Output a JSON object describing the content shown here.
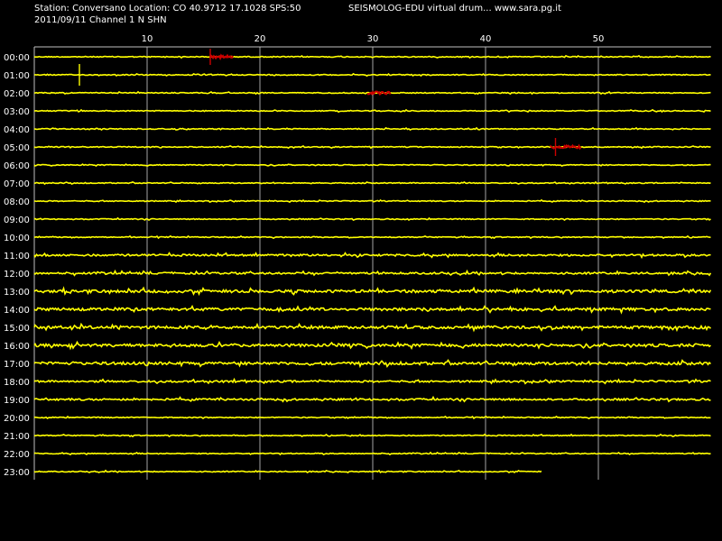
{
  "header": {
    "station_line": "Station: Conversano Location: CO 40.9712 17.1028 SPS:50",
    "title": "SEISMOLOG-EDU virtual drum... www.sara.pg.it",
    "date_line": "2011/09/11  Channel 1 N SHN"
  },
  "colors": {
    "background": "#000000",
    "trace": "#ffff00",
    "event": "#cc0000",
    "grid": "#c0c0c0",
    "text": "#ffffff"
  },
  "chart_data": {
    "type": "line",
    "title": "",
    "xlabel": "",
    "ylabel": "",
    "xlim": [
      0,
      60
    ],
    "x_ticks": [
      10,
      20,
      30,
      40,
      50
    ],
    "grid": true,
    "rows": [
      "00:00",
      "01:00",
      "02:00",
      "03:00",
      "04:00",
      "05:00",
      "06:00",
      "07:00",
      "08:00",
      "09:00",
      "10:00",
      "11:00",
      "12:00",
      "13:00",
      "14:00",
      "15:00",
      "16:00",
      "17:00",
      "18:00",
      "19:00",
      "20:00",
      "21:00",
      "22:00",
      "23:00"
    ],
    "noise_level": [
      1,
      1,
      1,
      1,
      1,
      1,
      1,
      1,
      1,
      1,
      1,
      2,
      2,
      3,
      3,
      3,
      3,
      3,
      2,
      2,
      1,
      1,
      1,
      1
    ],
    "last_row_end_minute": 45,
    "events": [
      {
        "row": 0,
        "start": 15.6,
        "end": 17.6
      },
      {
        "row": 2,
        "start": 29.6,
        "end": 31.6
      },
      {
        "row": 5,
        "start": 45.8,
        "end": 48.5
      }
    ],
    "spikes": [
      {
        "row": 0,
        "minute": 15.6
      },
      {
        "row": 1,
        "minute": 4.0
      },
      {
        "row": 5,
        "minute": 46.2
      }
    ]
  }
}
